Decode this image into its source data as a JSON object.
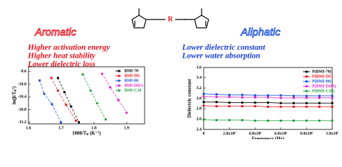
{
  "structure": {
    "linker": "R"
  },
  "left_panel": {
    "heading": "Aromatic",
    "points": [
      "Higher  activation energy",
      "Higher heat stability",
      "Lower dielectric loss"
    ]
  },
  "right_panel": {
    "heading": "Aliphatic",
    "points": [
      "Lower dielectric constant",
      "Lower water absorption"
    ]
  },
  "chart_data": [
    {
      "type": "line",
      "x_label": "1000/Tₚ (K⁻¹)",
      "y_label": "ln(β/Tₚ²)",
      "xlim": [
        1.6,
        1.955
      ],
      "ylim": [
        -11.25,
        -9.45
      ],
      "xticks": [
        1.6,
        1.7,
        1.8,
        1.9
      ],
      "yticks": [
        -9.6,
        {
          "value": -10,
          "label": "-10.0"
        },
        -10.4,
        -10.8,
        -11.2
      ],
      "legend": "upper right",
      "dashed": true,
      "series": [
        {
          "name": "BMI-70",
          "color": "#000000",
          "x": [
            1.69,
            1.71,
            1.73,
            1.754
          ],
          "values": [
            -9.8,
            -10.25,
            -10.7,
            -11.2
          ]
        },
        {
          "name": "BMI-DE",
          "color": "#e8141e",
          "x": [
            1.67,
            1.69,
            1.715,
            1.745
          ],
          "values": [
            -9.8,
            -10.2,
            -10.65,
            -11.15
          ]
        },
        {
          "name": "BMI-80",
          "color": "#1a4fd6",
          "x": [
            1.634,
            1.648,
            1.672,
            1.699
          ],
          "values": [
            -9.88,
            -10.3,
            -10.63,
            -11.2
          ]
        },
        {
          "name": "BMI-DDA",
          "color": "#e020c8",
          "x": [
            1.825,
            1.85,
            1.875,
            1.9
          ],
          "values": [
            -9.67,
            -10.1,
            -10.5,
            -10.9
          ]
        },
        {
          "name": "BMI-C36",
          "color": "#1e9e3a",
          "x": [
            1.766,
            1.79,
            1.81,
            1.836
          ],
          "values": [
            -9.69,
            -10.2,
            -10.6,
            -11.11
          ]
        }
      ]
    },
    {
      "type": "line",
      "x_label": "Frequency (Hz)",
      "y_label": "Dielectric constant",
      "xlim": [
        0,
        10000000
      ],
      "ylim": [
        2.4,
        3.6
      ],
      "xticks": [
        0,
        {
          "value": 2000000,
          "label": "2.0x10⁶"
        },
        {
          "value": 4000000,
          "label": "4.0x10⁶"
        },
        {
          "value": 6000000,
          "label": "6.0x10⁶"
        },
        {
          "value": 8000000,
          "label": "8.0x10⁶"
        },
        {
          "value": 10000000,
          "label": "1.0x10⁷"
        }
      ],
      "yticks": [
        2.4,
        2.6,
        2.8,
        {
          "value": 3,
          "label": "3.0"
        },
        3.2,
        3.4,
        3.6
      ],
      "legend": "upper right",
      "dashed": false,
      "series": [
        {
          "name": "P(BMI-70)",
          "color": "#000000",
          "x": [
            0,
            1000000,
            2000000,
            3000000,
            4000000,
            5000000,
            6000000,
            7000000,
            8000000,
            9000000,
            10000000
          ],
          "values": [
            2.93,
            2.93,
            2.92,
            2.92,
            2.92,
            2.92,
            2.91,
            2.91,
            2.91,
            2.91,
            2.91
          ]
        },
        {
          "name": "P(BMI-DE)",
          "color": "#e8141e",
          "x": [
            0,
            1000000,
            2000000,
            3000000,
            4000000,
            5000000,
            6000000,
            7000000,
            8000000,
            9000000,
            10000000
          ],
          "values": [
            2.86,
            2.85,
            2.85,
            2.85,
            2.85,
            2.84,
            2.84,
            2.84,
            2.84,
            2.84,
            2.84
          ]
        },
        {
          "name": "P(BMI-80)",
          "color": "#1a4fd6",
          "x": [
            0,
            1000000,
            2000000,
            3000000,
            4000000,
            5000000,
            6000000,
            7000000,
            8000000,
            9000000,
            10000000
          ],
          "values": [
            3.09,
            3.08,
            3.07,
            3.07,
            3.06,
            3.06,
            3.06,
            3.05,
            3.05,
            3.05,
            3.05
          ]
        },
        {
          "name": "P(BMI-DDA)",
          "color": "#e020c8",
          "x": [
            0,
            1000000,
            2000000,
            3000000,
            4000000,
            5000000,
            6000000,
            7000000,
            8000000,
            9000000,
            10000000
          ],
          "values": [
            3.04,
            3.03,
            3.03,
            3.02,
            3.02,
            3.02,
            3.01,
            3.01,
            3.01,
            3.01,
            3.01
          ]
        },
        {
          "name": "P(BMI-C36)",
          "color": "#1e9e3a",
          "x": [
            0,
            1000000,
            2000000,
            3000000,
            4000000,
            5000000,
            6000000,
            7000000,
            8000000,
            9000000,
            10000000
          ],
          "values": [
            2.59,
            2.58,
            2.58,
            2.58,
            2.57,
            2.57,
            2.57,
            2.57,
            2.57,
            2.57,
            2.57
          ]
        }
      ]
    }
  ]
}
